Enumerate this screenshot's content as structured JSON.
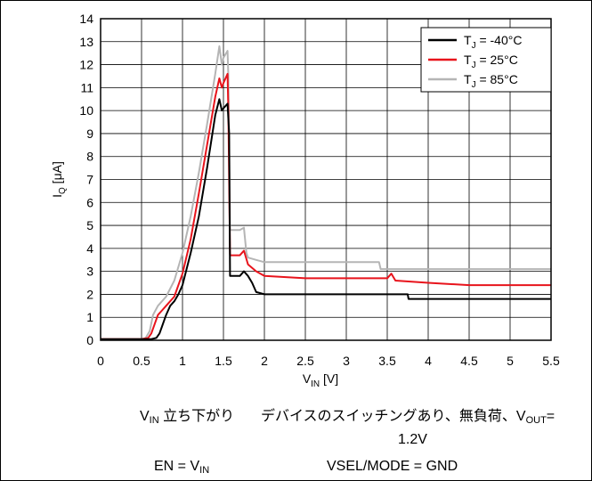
{
  "chart_data": {
    "type": "line",
    "xlabel": {
      "main": "V",
      "sub": "IN",
      "unit": " [V]"
    },
    "ylabel": {
      "main": "I",
      "sub": "Q",
      "unit": " [μA]"
    },
    "xlim": [
      0,
      5.5
    ],
    "ylim": [
      0,
      14
    ],
    "xticks": [
      "0",
      "0.5",
      "1",
      "1.5",
      "2",
      "2.5",
      "3",
      "3.5",
      "4",
      "4.5",
      "5",
      "5.5"
    ],
    "yticks": [
      "0",
      "1",
      "2",
      "3",
      "4",
      "5",
      "6",
      "7",
      "8",
      "9",
      "10",
      "11",
      "12",
      "13",
      "14"
    ],
    "grid": true,
    "legend_position": "top-right",
    "series": [
      {
        "name": "T_J = -40°C",
        "legend": {
          "main": "T",
          "sub": "J",
          "rest": " = -40°C"
        },
        "color": "#000000",
        "x": [
          0,
          0.3,
          0.5,
          0.62,
          0.68,
          0.72,
          0.75,
          0.8,
          0.85,
          0.9,
          0.95,
          1.0,
          1.1,
          1.2,
          1.3,
          1.4,
          1.45,
          1.48,
          1.5,
          1.55,
          1.57,
          1.58,
          1.6,
          1.7,
          1.75,
          1.8,
          1.85,
          1.9,
          2.0,
          2.5,
          3.0,
          3.5,
          3.75,
          3.76,
          4.0,
          4.5,
          5.0,
          5.5
        ],
        "y": [
          0.05,
          0.05,
          0.05,
          0.05,
          0.1,
          0.3,
          0.6,
          1.1,
          1.5,
          1.7,
          2.0,
          2.4,
          3.8,
          5.4,
          7.5,
          9.8,
          10.5,
          10.0,
          10.1,
          10.3,
          9.0,
          2.8,
          2.8,
          2.8,
          3.0,
          2.8,
          2.5,
          2.1,
          2.0,
          2.0,
          2.0,
          2.0,
          2.0,
          1.8,
          1.8,
          1.8,
          1.8,
          1.8
        ]
      },
      {
        "name": "T_J = 25°C",
        "legend": {
          "main": "T",
          "sub": "J",
          "rest": " = 25°C"
        },
        "color": "#e8141c",
        "x": [
          0,
          0.3,
          0.5,
          0.58,
          0.62,
          0.66,
          0.7,
          0.75,
          0.8,
          0.9,
          1.0,
          1.1,
          1.2,
          1.3,
          1.4,
          1.45,
          1.48,
          1.5,
          1.55,
          1.56,
          1.58,
          1.7,
          1.75,
          1.8,
          1.9,
          2.0,
          2.5,
          3.0,
          3.5,
          3.55,
          3.6,
          4.0,
          4.5,
          5.0,
          5.5
        ],
        "y": [
          0.05,
          0.05,
          0.05,
          0.1,
          0.3,
          0.7,
          1.1,
          1.3,
          1.5,
          1.9,
          2.9,
          4.4,
          6.4,
          8.5,
          10.6,
          11.4,
          11.0,
          11.2,
          11.6,
          10.0,
          3.7,
          3.7,
          3.9,
          3.3,
          3.0,
          2.8,
          2.7,
          2.7,
          2.7,
          2.9,
          2.6,
          2.5,
          2.4,
          2.4,
          2.4
        ]
      },
      {
        "name": "T_J = 85°C",
        "legend": {
          "main": "T",
          "sub": "J",
          "rest": " = 85°C"
        },
        "color": "#b5b5b5",
        "x": [
          0,
          0.3,
          0.5,
          0.55,
          0.6,
          0.64,
          0.7,
          0.8,
          0.9,
          1.0,
          1.1,
          1.2,
          1.3,
          1.4,
          1.45,
          1.48,
          1.5,
          1.55,
          1.56,
          1.58,
          1.7,
          1.75,
          1.78,
          1.8,
          1.9,
          2.0,
          2.5,
          3.0,
          3.4,
          3.42,
          3.5,
          4.0,
          4.5,
          5.0,
          5.5
        ],
        "y": [
          0.05,
          0.05,
          0.05,
          0.1,
          0.4,
          1.1,
          1.5,
          1.9,
          2.6,
          3.8,
          5.4,
          7.3,
          9.4,
          11.6,
          12.8,
          12.0,
          12.3,
          12.6,
          11.5,
          4.8,
          4.8,
          4.9,
          3.8,
          3.6,
          3.5,
          3.4,
          3.4,
          3.4,
          3.4,
          3.1,
          3.1,
          3.1,
          3.1,
          3.1,
          3.1
        ]
      }
    ]
  },
  "notes": {
    "vin_falling": {
      "main": "V",
      "sub": "IN",
      "rest": " 立ち下がり"
    },
    "switching": {
      "text": "デバイスのスイッチングあり、無負荷、V",
      "sub": "OUT",
      "rest": "="
    },
    "vout_value": "1.2V",
    "en": {
      "main": "EN = V",
      "sub": "IN"
    },
    "vsel": "VSEL/MODE = GND"
  }
}
